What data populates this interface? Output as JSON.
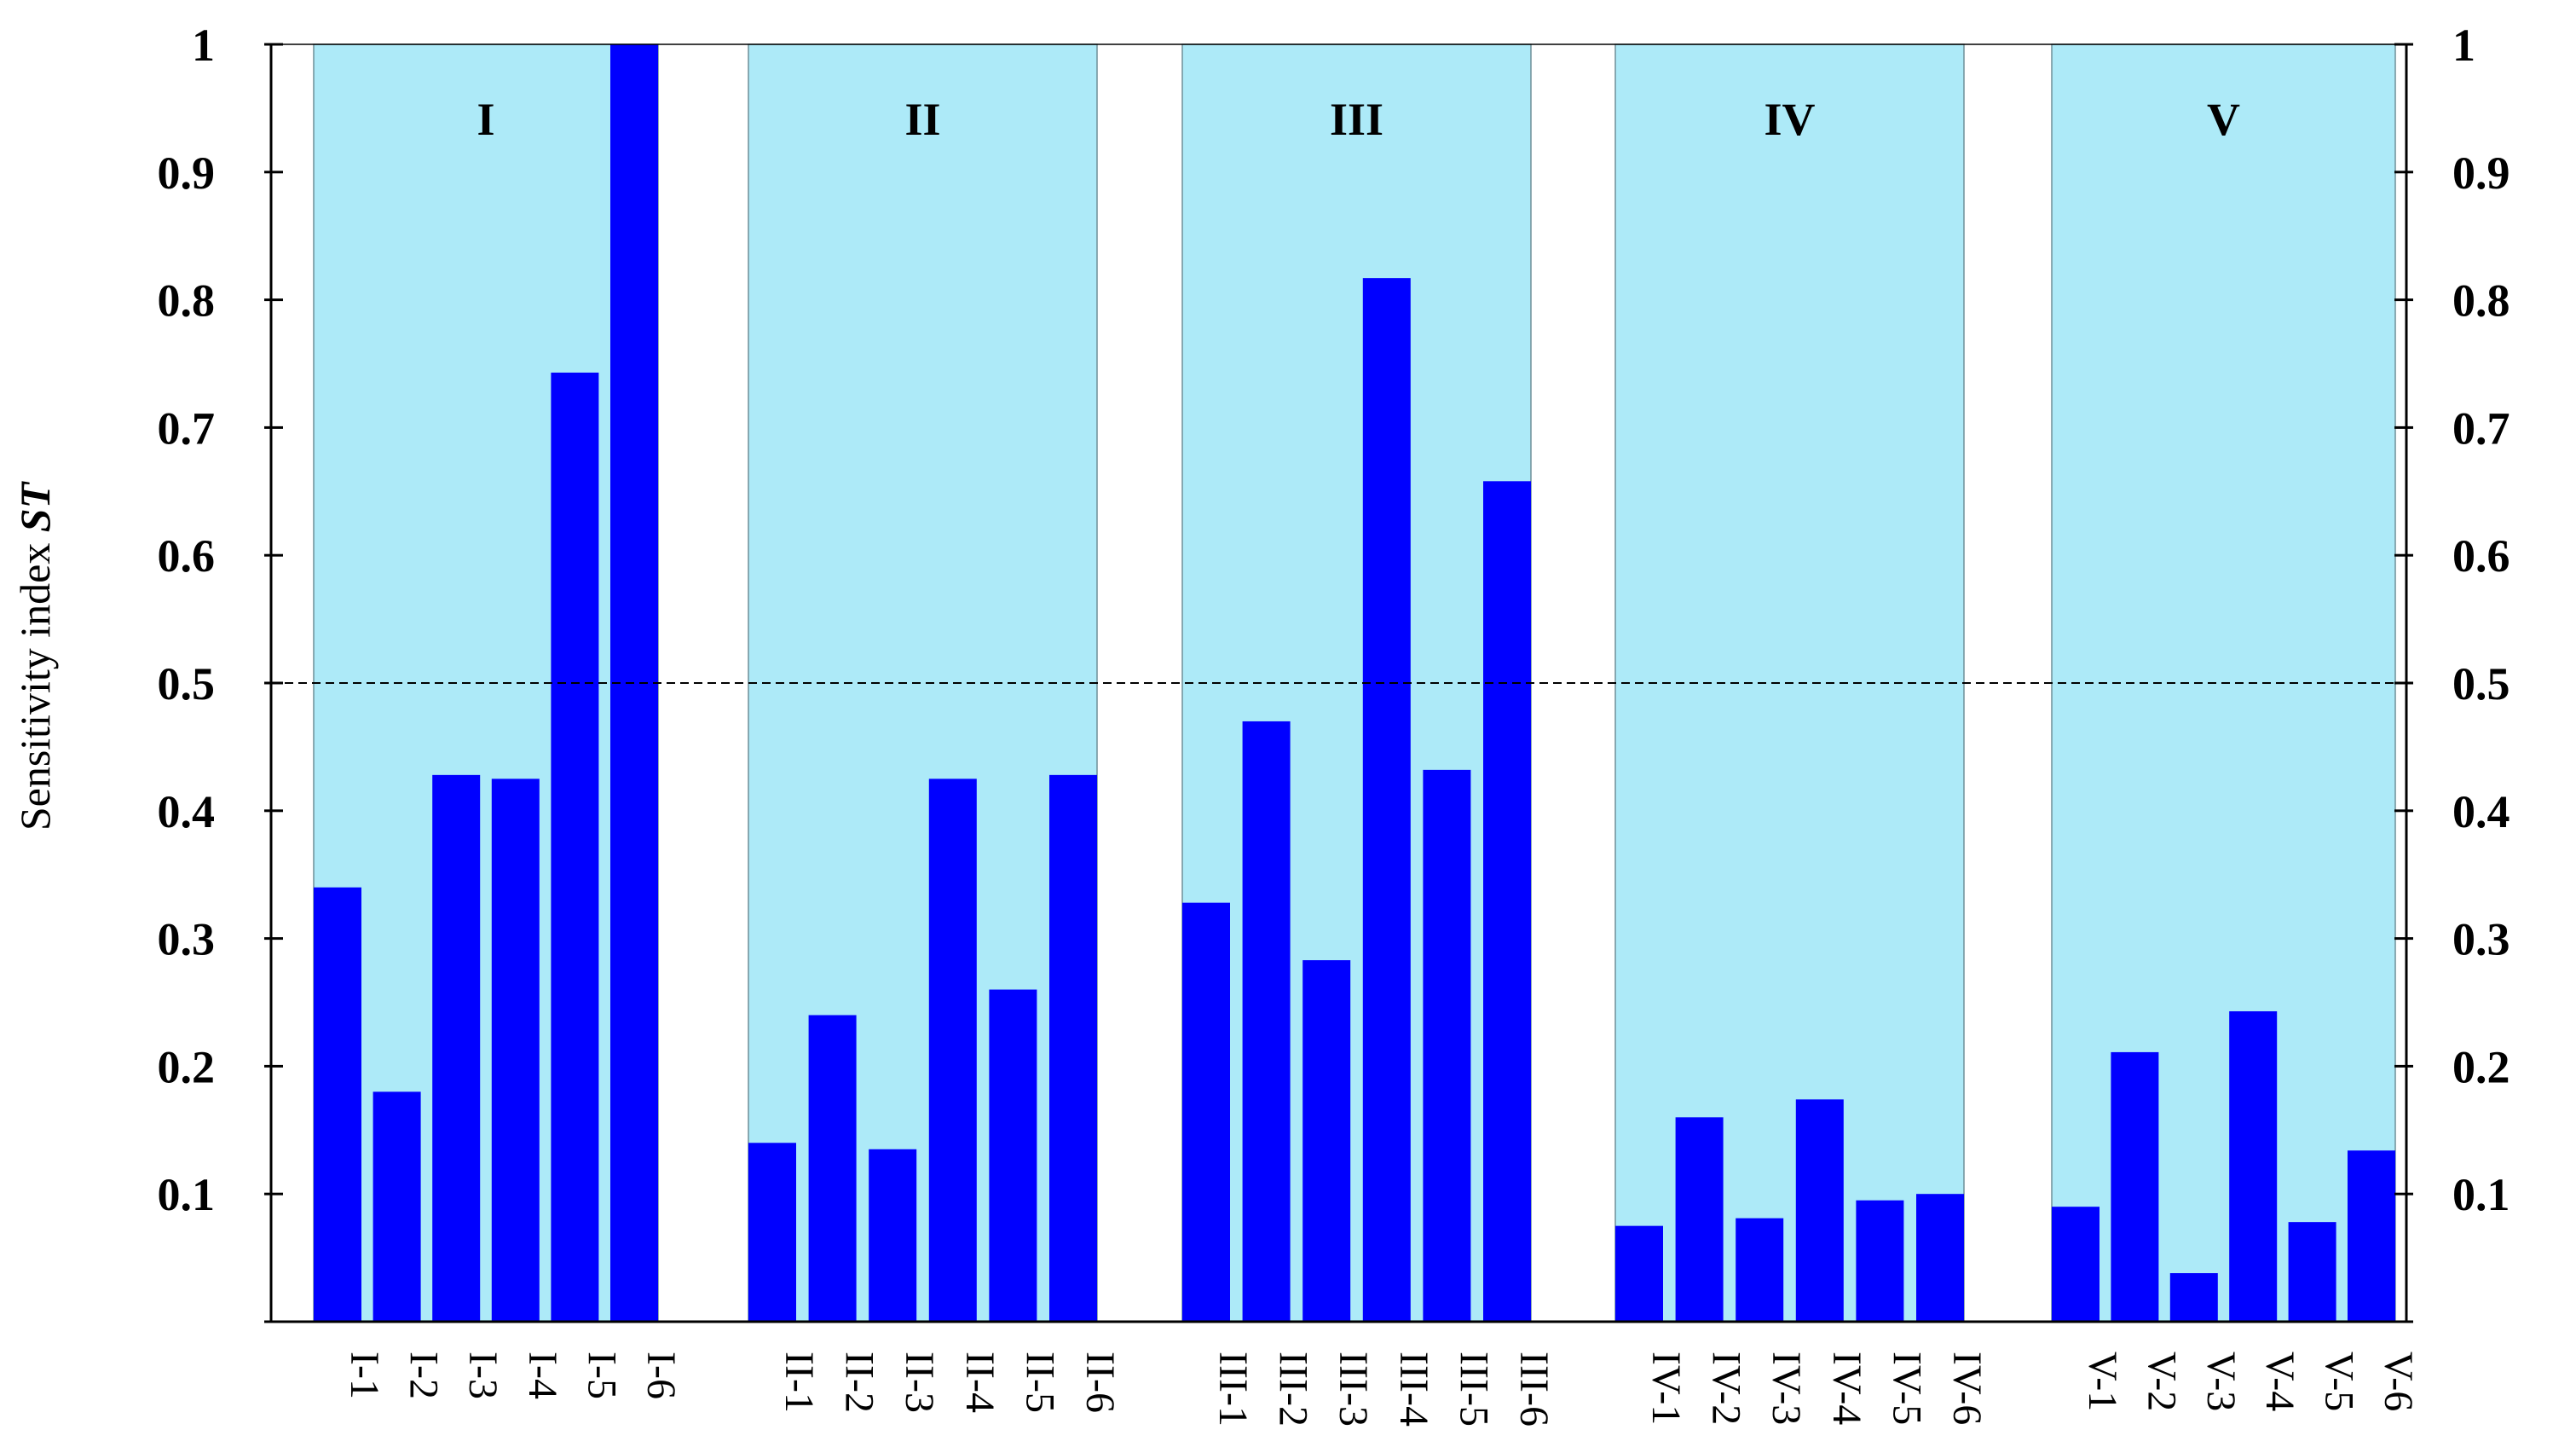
{
  "chart_data": {
    "type": "bar",
    "title": "",
    "xlabel": "",
    "ylabel": "Sensitivity index ",
    "ylabel_emphasis": "ST",
    "ylim": [
      0,
      1
    ],
    "yticks": [
      "0.1",
      "0.2",
      "0.3",
      "0.4",
      "0.5",
      "0.6",
      "0.7",
      "0.8",
      "0.9",
      "1"
    ],
    "threshold": 0.5,
    "grid": false,
    "colors": {
      "bar": "#0000FF",
      "band": "#ADEAF8",
      "threshold_line": "#000000"
    },
    "groups": [
      {
        "label": "I",
        "categories": [
          "I-1",
          "I-2",
          "I-3",
          "I-4",
          "I-5",
          "I-6"
        ],
        "values": [
          0.34,
          0.18,
          0.428,
          0.425,
          0.743,
          1.0
        ]
      },
      {
        "label": "II",
        "categories": [
          "II-1",
          "II-2",
          "II-3",
          "II-4",
          "II-5",
          "II-6"
        ],
        "values": [
          0.14,
          0.24,
          0.135,
          0.425,
          0.26,
          0.428
        ]
      },
      {
        "label": "III",
        "categories": [
          "III-1",
          "III-2",
          "III-3",
          "III-4",
          "III-5",
          "III-6"
        ],
        "values": [
          0.328,
          0.47,
          0.283,
          0.817,
          0.432,
          0.658
        ]
      },
      {
        "label": "IV",
        "categories": [
          "IV-1",
          "IV-2",
          "IV-3",
          "IV-4",
          "IV-5",
          "IV-6"
        ],
        "values": [
          0.075,
          0.16,
          0.081,
          0.174,
          0.095,
          0.1
        ]
      },
      {
        "label": "V",
        "categories": [
          "V-1",
          "V-2",
          "V-3",
          "V-4",
          "V-5",
          "V-6"
        ],
        "values": [
          0.09,
          0.211,
          0.038,
          0.243,
          0.078,
          0.134
        ]
      }
    ]
  }
}
